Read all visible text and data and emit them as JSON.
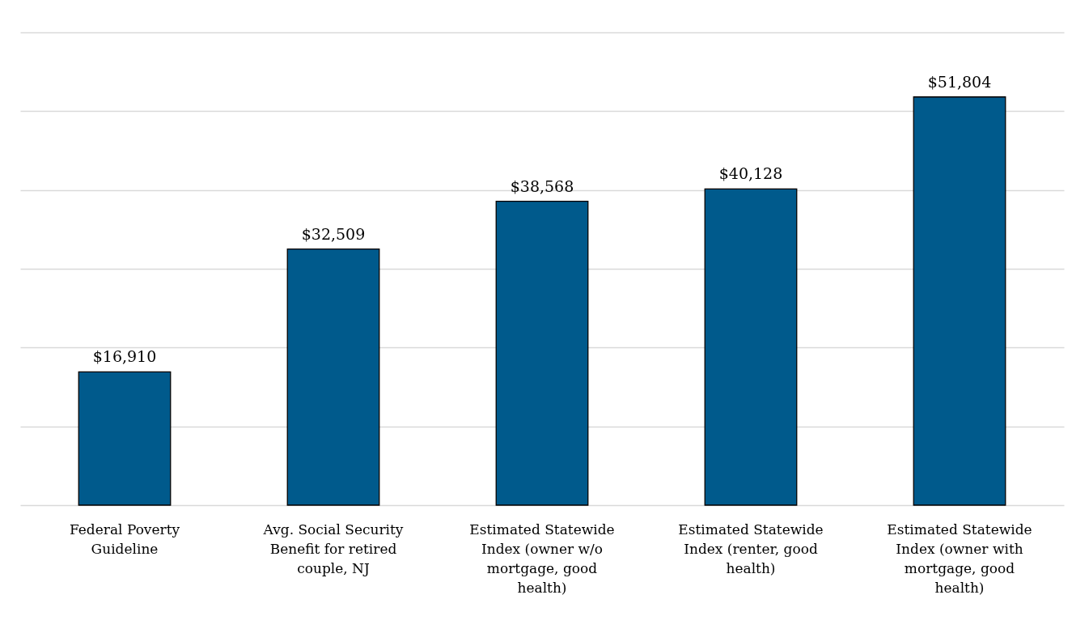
{
  "chart_data": {
    "type": "bar",
    "categories": [
      "Federal Poverty Guideline",
      "Avg. Social Security Benefit for retired couple, NJ",
      "Estimated Statewide Index (owner w/o mortgage, good health)",
      "Estimated Statewide Index (renter, good health)",
      "Estimated Statewide Index (owner with mortgage, good health)"
    ],
    "values": [
      16910,
      32509,
      38568,
      40128,
      51804
    ],
    "value_labels": [
      "$16,910",
      "$32,509",
      "$38,568",
      "$40,128",
      "$51,804"
    ],
    "color": "#005a8c",
    "ylim": [
      0,
      60000
    ],
    "yticks": [
      {
        "value": 0,
        "label": null
      },
      {
        "value": 10000,
        "label": null
      },
      {
        "value": 20000,
        "label": null
      },
      {
        "value": 30000,
        "label": null
      },
      {
        "value": 40000,
        "label": null
      },
      {
        "value": 50000,
        "label": null
      },
      {
        "value": 60000,
        "label": null
      }
    ],
    "grid": "y",
    "tick_labels": "x"
  }
}
